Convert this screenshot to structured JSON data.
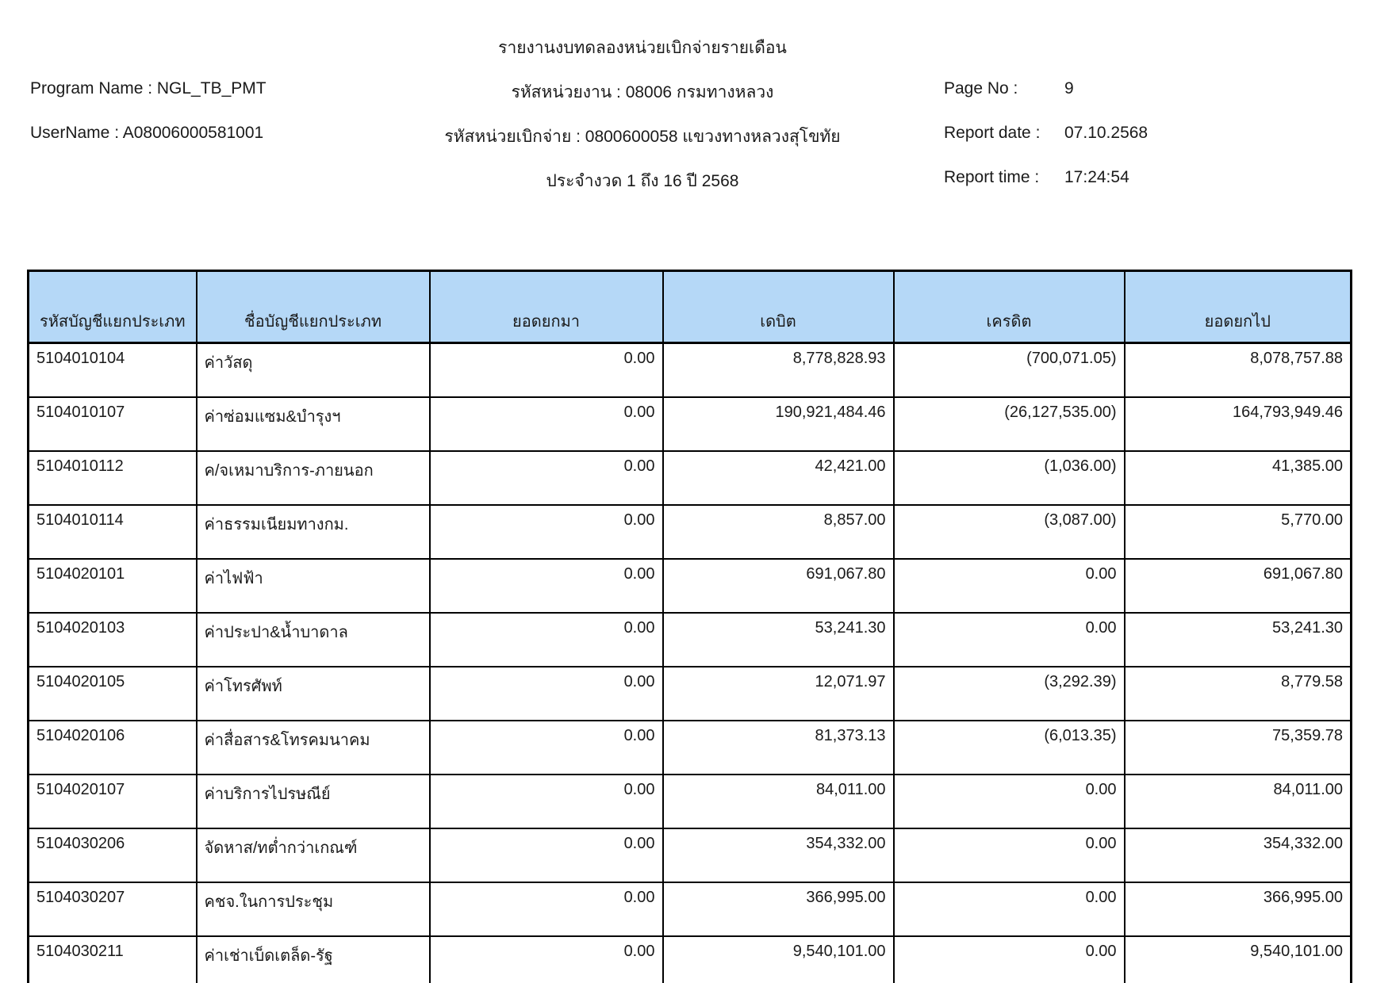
{
  "report": {
    "title": "รายงานงบทดลองหน่วยเบิกจ่ายรายเดือน",
    "program_name": "Program Name : NGL_TB_PMT",
    "user_name": "UserName : A08006000581001",
    "agency": "รหัสหน่วยงาน : 08006 กรมทางหลวง",
    "disbursement_unit": "รหัสหน่วยเบิกจ่าย : 0800600058 แขวงทางหลวงสุโขทัย",
    "period": "ประจำงวด 1 ถึง 16 ปี 2568",
    "page_no_label": "Page No :",
    "page_no": "9",
    "report_date_label": "Report date :",
    "report_date": "07.10.2568",
    "report_time_label": "Report time :",
    "report_time": "17:24:54"
  },
  "table": {
    "columns": [
      "รหัสบัญชีแยกประเภท",
      "ชื่อบัญชีแยกประเภท",
      "ยอดยกมา",
      "เดบิต",
      "เครดิต",
      "ยอดยกไป"
    ],
    "rows": [
      {
        "code": "5104010104",
        "name": "ค่าวัสดุ",
        "brought_forward": "0.00",
        "debit": "8,778,828.93",
        "credit": "(700,071.05)",
        "carried_forward": "8,078,757.88"
      },
      {
        "code": "5104010107",
        "name": "ค่าซ่อมแซม&บำรุงฯ",
        "brought_forward": "0.00",
        "debit": "190,921,484.46",
        "credit": "(26,127,535.00)",
        "carried_forward": "164,793,949.46"
      },
      {
        "code": "5104010112",
        "name": "ค/จเหมาบริการ-ภายนอก",
        "brought_forward": "0.00",
        "debit": "42,421.00",
        "credit": "(1,036.00)",
        "carried_forward": "41,385.00"
      },
      {
        "code": "5104010114",
        "name": "ค่าธรรมเนียมทางกม.",
        "brought_forward": "0.00",
        "debit": "8,857.00",
        "credit": "(3,087.00)",
        "carried_forward": "5,770.00"
      },
      {
        "code": "5104020101",
        "name": "ค่าไฟฟ้า",
        "brought_forward": "0.00",
        "debit": "691,067.80",
        "credit": "0.00",
        "carried_forward": "691,067.80"
      },
      {
        "code": "5104020103",
        "name": "ค่าประปา&น้ำบาดาล",
        "brought_forward": "0.00",
        "debit": "53,241.30",
        "credit": "0.00",
        "carried_forward": "53,241.30"
      },
      {
        "code": "5104020105",
        "name": "ค่าโทรศัพท์",
        "brought_forward": "0.00",
        "debit": "12,071.97",
        "credit": "(3,292.39)",
        "carried_forward": "8,779.58"
      },
      {
        "code": "5104020106",
        "name": "ค่าสื่อสาร&โทรคมนาคม",
        "brought_forward": "0.00",
        "debit": "81,373.13",
        "credit": "(6,013.35)",
        "carried_forward": "75,359.78"
      },
      {
        "code": "5104020107",
        "name": "ค่าบริการไปรษณีย์",
        "brought_forward": "0.00",
        "debit": "84,011.00",
        "credit": "0.00",
        "carried_forward": "84,011.00"
      },
      {
        "code": "5104030206",
        "name": "จัดหาส/ทต่ำกว่าเกณฑ์",
        "brought_forward": "0.00",
        "debit": "354,332.00",
        "credit": "0.00",
        "carried_forward": "354,332.00"
      },
      {
        "code": "5104030207",
        "name": "คชจ.ในการประชุม",
        "brought_forward": "0.00",
        "debit": "366,995.00",
        "credit": "0.00",
        "carried_forward": "366,995.00"
      },
      {
        "code": "5104030211",
        "name": "ค่าเช่าเบ็ดเตล็ด-รัฐ",
        "brought_forward": "0.00",
        "debit": "9,540,101.00",
        "credit": "0.00",
        "carried_forward": "9,540,101.00"
      }
    ]
  },
  "colors": {
    "header_bg": "#b5d8f7",
    "border": "#000000"
  }
}
